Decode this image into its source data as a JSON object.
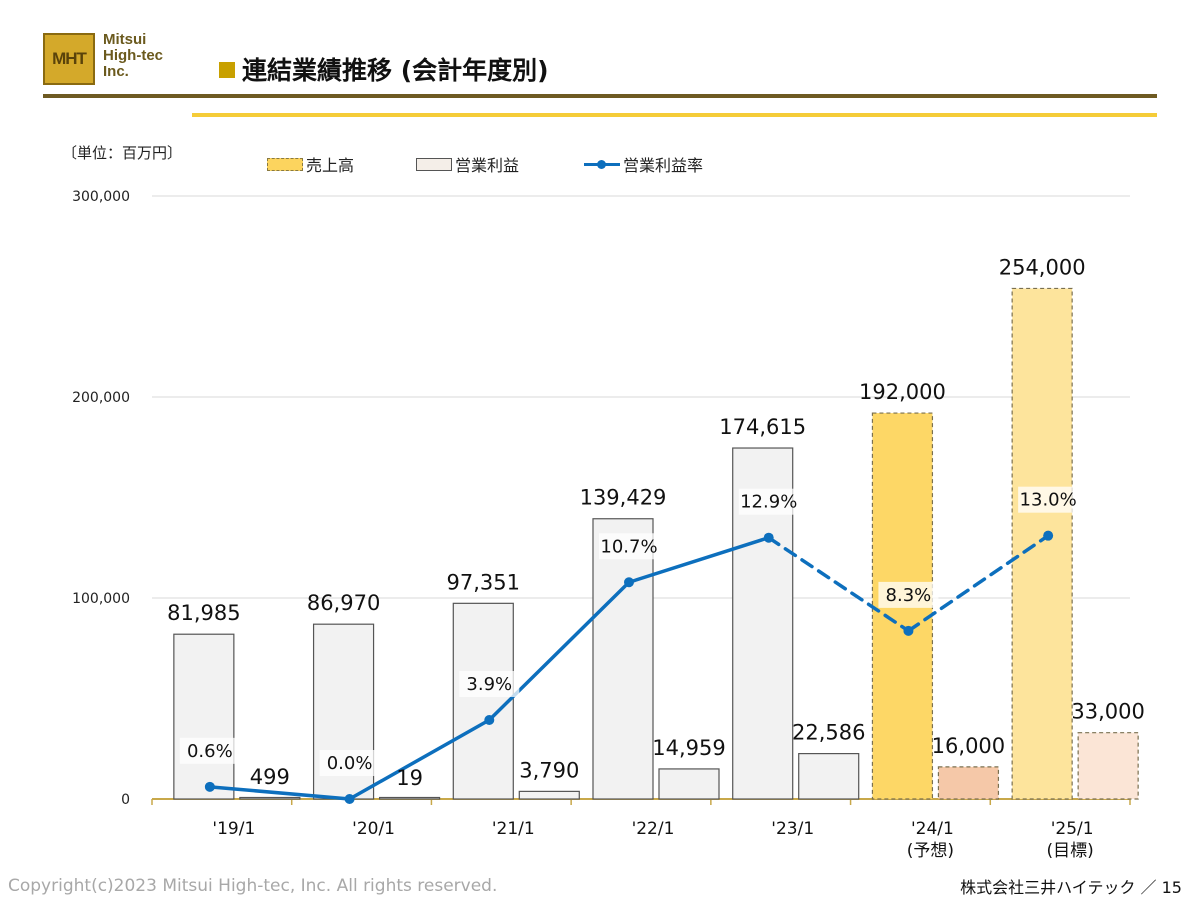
{
  "header": {
    "logo_mark": "MHT",
    "logo_lines": [
      "Mitsui",
      "High-tec",
      "Inc."
    ],
    "title": "連結業績推移 (会計年度別)"
  },
  "unit_label": "〔単位：百万円〕",
  "colors": {
    "sales_bar": "#f2f2f2",
    "sales_forecast": "#fdd766",
    "sales_target": "#fde49c",
    "op_bar": "#f2f2f2",
    "op_forecast": "#f5c8a8",
    "op_target": "#fbe5d6",
    "line": "#0d6fbd",
    "grid": "#d9d9d9",
    "axis": "#c8a84a"
  },
  "chart_data": {
    "type": "bar",
    "categories": [
      "'19/1",
      "'20/1",
      "'21/1",
      "'22/1",
      "'23/1",
      "'24/1",
      "'25/1"
    ],
    "category_notes": [
      "",
      "",
      "",
      "",
      "",
      "(予想)",
      "(目標)"
    ],
    "series": [
      {
        "name": "売上高",
        "type": "bar",
        "values": [
          81985,
          86970,
          97351,
          139429,
          174615,
          192000,
          254000
        ],
        "labels": [
          "81,985",
          "86,970",
          "97,351",
          "139,429",
          "174,615",
          "192,000",
          "254,000"
        ]
      },
      {
        "name": "営業利益",
        "type": "bar",
        "values": [
          499,
          19,
          3790,
          14959,
          22586,
          16000,
          33000
        ],
        "labels": [
          "499",
          "19",
          "3,790",
          "14,959",
          "22,586",
          "16,000",
          "33,000"
        ]
      },
      {
        "name": "営業利益率",
        "type": "line",
        "unit": "%",
        "values": [
          0.6,
          0.0,
          3.9,
          10.7,
          12.9,
          8.3,
          13.0
        ],
        "labels": [
          "0.6%",
          "0.0%",
          "3.9%",
          "10.7%",
          "12.9%",
          "8.3%",
          "13.0%"
        ]
      }
    ],
    "ylim": [
      0,
      300000
    ],
    "yticks": [
      0,
      100000,
      200000,
      300000
    ],
    "ytick_labels": [
      "0",
      "100,000",
      "200,000",
      "300,000"
    ],
    "grid": true,
    "legend": "top"
  },
  "footer": {
    "copyright": "Copyright(c)2023 Mitsui High-tec, Inc. All rights reserved.",
    "company_page": "株式会社三井ハイテック ／ 15"
  }
}
